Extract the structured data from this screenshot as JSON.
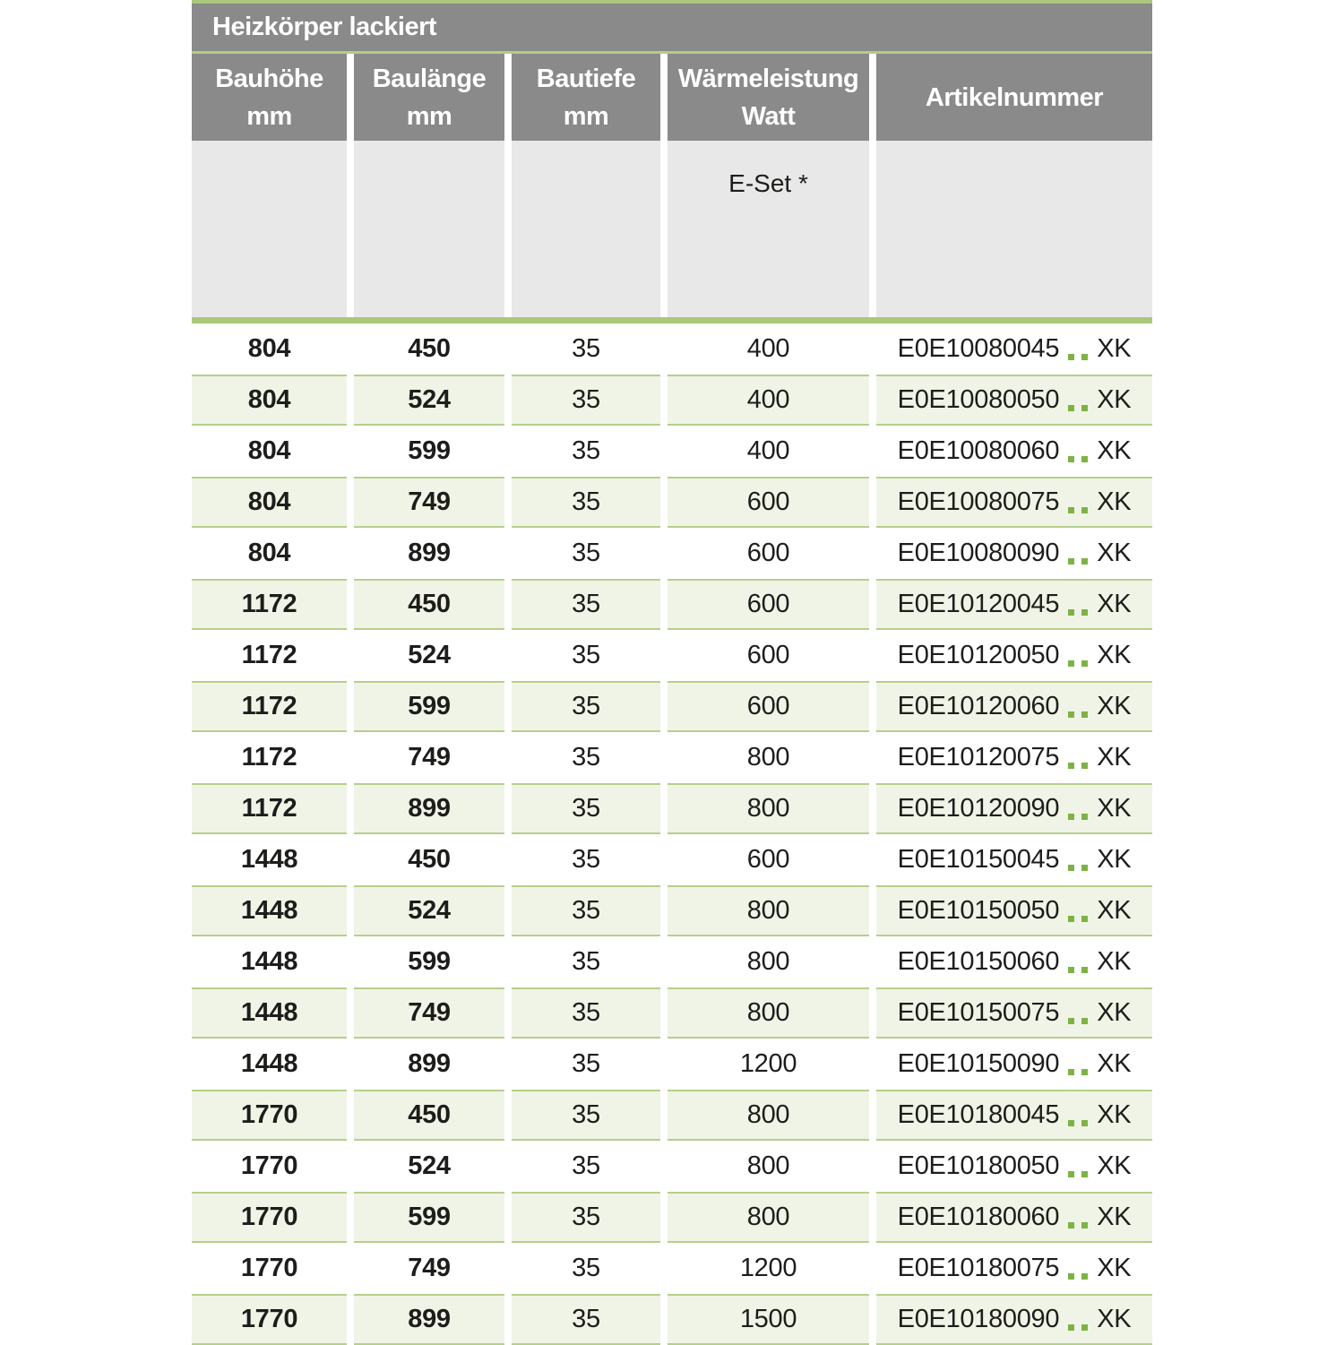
{
  "table": {
    "title": "Heizkörper lackiert",
    "columns": [
      {
        "label": "Bauhöhe",
        "unit": "mm"
      },
      {
        "label": "Baulänge",
        "unit": "mm"
      },
      {
        "label": "Bautiefe",
        "unit": "mm"
      },
      {
        "label": "Wärmeleistung",
        "unit": "Watt"
      },
      {
        "label": "Artikelnummer",
        "unit": ""
      }
    ],
    "subheader": {
      "eset_label": "E-Set *"
    },
    "artikel_placeholder": "..",
    "rows": [
      {
        "bauhoehe": "804",
        "baulaenge": "450",
        "bautiefe": "35",
        "watt": "400",
        "artikel_code": "E0E10080045",
        "artikel_suffix": "XK"
      },
      {
        "bauhoehe": "804",
        "baulaenge": "524",
        "bautiefe": "35",
        "watt": "400",
        "artikel_code": "E0E10080050",
        "artikel_suffix": "XK"
      },
      {
        "bauhoehe": "804",
        "baulaenge": "599",
        "bautiefe": "35",
        "watt": "400",
        "artikel_code": "E0E10080060",
        "artikel_suffix": "XK"
      },
      {
        "bauhoehe": "804",
        "baulaenge": "749",
        "bautiefe": "35",
        "watt": "600",
        "artikel_code": "E0E10080075",
        "artikel_suffix": "XK"
      },
      {
        "bauhoehe": "804",
        "baulaenge": "899",
        "bautiefe": "35",
        "watt": "600",
        "artikel_code": "E0E10080090",
        "artikel_suffix": "XK"
      },
      {
        "bauhoehe": "1172",
        "baulaenge": "450",
        "bautiefe": "35",
        "watt": "600",
        "artikel_code": "E0E10120045",
        "artikel_suffix": "XK"
      },
      {
        "bauhoehe": "1172",
        "baulaenge": "524",
        "bautiefe": "35",
        "watt": "600",
        "artikel_code": "E0E10120050",
        "artikel_suffix": "XK"
      },
      {
        "bauhoehe": "1172",
        "baulaenge": "599",
        "bautiefe": "35",
        "watt": "600",
        "artikel_code": "E0E10120060",
        "artikel_suffix": "XK"
      },
      {
        "bauhoehe": "1172",
        "baulaenge": "749",
        "bautiefe": "35",
        "watt": "800",
        "artikel_code": "E0E10120075",
        "artikel_suffix": "XK"
      },
      {
        "bauhoehe": "1172",
        "baulaenge": "899",
        "bautiefe": "35",
        "watt": "800",
        "artikel_code": "E0E10120090",
        "artikel_suffix": "XK"
      },
      {
        "bauhoehe": "1448",
        "baulaenge": "450",
        "bautiefe": "35",
        "watt": "600",
        "artikel_code": "E0E10150045",
        "artikel_suffix": "XK"
      },
      {
        "bauhoehe": "1448",
        "baulaenge": "524",
        "bautiefe": "35",
        "watt": "800",
        "artikel_code": "E0E10150050",
        "artikel_suffix": "XK"
      },
      {
        "bauhoehe": "1448",
        "baulaenge": "599",
        "bautiefe": "35",
        "watt": "800",
        "artikel_code": "E0E10150060",
        "artikel_suffix": "XK"
      },
      {
        "bauhoehe": "1448",
        "baulaenge": "749",
        "bautiefe": "35",
        "watt": "800",
        "artikel_code": "E0E10150075",
        "artikel_suffix": "XK"
      },
      {
        "bauhoehe": "1448",
        "baulaenge": "899",
        "bautiefe": "35",
        "watt": "1200",
        "artikel_code": "E0E10150090",
        "artikel_suffix": "XK"
      },
      {
        "bauhoehe": "1770",
        "baulaenge": "450",
        "bautiefe": "35",
        "watt": "800",
        "artikel_code": "E0E10180045",
        "artikel_suffix": "XK"
      },
      {
        "bauhoehe": "1770",
        "baulaenge": "524",
        "bautiefe": "35",
        "watt": "800",
        "artikel_code": "E0E10180050",
        "artikel_suffix": "XK"
      },
      {
        "bauhoehe": "1770",
        "baulaenge": "599",
        "bautiefe": "35",
        "watt": "800",
        "artikel_code": "E0E10180060",
        "artikel_suffix": "XK"
      },
      {
        "bauhoehe": "1770",
        "baulaenge": "749",
        "bautiefe": "35",
        "watt": "1200",
        "artikel_code": "E0E10180075",
        "artikel_suffix": "XK"
      },
      {
        "bauhoehe": "1770",
        "baulaenge": "899",
        "bautiefe": "35",
        "watt": "1500",
        "artikel_code": "E0E10180090",
        "artikel_suffix": "XK"
      }
    ]
  },
  "colors": {
    "header_gray": "#8a8a8a",
    "subheader_gray": "#e8e8e8",
    "green_line": "#a9c87c",
    "row_alt_bg": "#f0f4e6",
    "row_alt_border": "#b6cf8c",
    "dot_green": "#7db344",
    "text": "#1d1d1b"
  }
}
